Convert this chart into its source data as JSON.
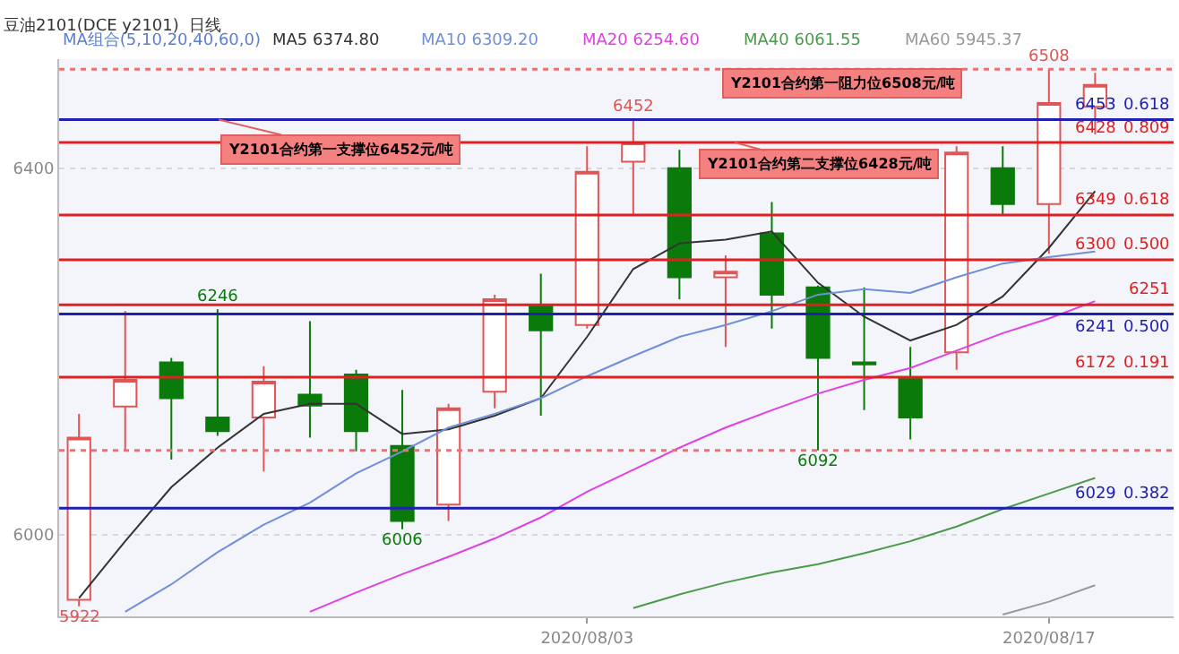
{
  "chart_data": {
    "type": "candlestick",
    "title": "豆油2101(DCE y2101)  日线",
    "categories": [
      null,
      null,
      null,
      null,
      null,
      null,
      null,
      null,
      null,
      null,
      null,
      "2020/08/03",
      null,
      null,
      null,
      null,
      null,
      null,
      null,
      null,
      null,
      "2020/08/17",
      null
    ],
    "ohlc": [
      [
        5929,
        6132,
        5922,
        6106
      ],
      [
        6140,
        6244,
        6091,
        6169
      ],
      [
        6188,
        6193,
        6082,
        6149
      ],
      [
        6128,
        6246,
        6108,
        6113
      ],
      [
        6128,
        6184,
        6069,
        6167
      ],
      [
        6153,
        6233,
        6106,
        6141
      ],
      [
        6175,
        6180,
        6091,
        6113
      ],
      [
        6097,
        6158,
        6006,
        6015
      ],
      [
        6033,
        6143,
        6015,
        6138
      ],
      [
        6156,
        6262,
        6138,
        6257
      ],
      [
        6251,
        6285,
        6130,
        6223
      ],
      [
        6229,
        6424,
        6225,
        6396
      ],
      [
        6407,
        6452,
        6350,
        6428
      ],
      [
        6400,
        6420,
        6257,
        6281
      ],
      [
        6281,
        6305,
        6205,
        6287
      ],
      [
        6329,
        6363,
        6225,
        6262
      ],
      [
        6270,
        6272,
        6092,
        6193
      ],
      [
        6188,
        6270,
        6136,
        6186
      ],
      [
        6171,
        6205,
        6104,
        6128
      ],
      [
        6199,
        6424,
        6180,
        6417
      ],
      [
        6400,
        6424,
        6350,
        6361
      ],
      [
        6361,
        6508,
        6307,
        6471
      ],
      [
        6467,
        6504,
        6437,
        6491
      ]
    ],
    "colors": [
      "#e05555",
      "#e05555",
      "#0a7a0a",
      "#0a7a0a",
      "#e05555",
      "#0a7a0a",
      "#0a7a0a",
      "#0a7a0a",
      "#e05555",
      "#e05555",
      "#0a7a0a",
      "#e05555",
      "#e05555",
      "#0a7a0a",
      "#e05555",
      "#0a7a0a",
      "#0a7a0a",
      "#0a7a0a",
      "#0a7a0a",
      "#e05555",
      "#0a7a0a",
      "#e05555",
      "#e05555"
    ],
    "series": [
      {
        "name": "MA5 6374.80",
        "color": "#333333",
        "type": "line",
        "values": [
          5931,
          5993,
          6052,
          6095,
          6132,
          6143,
          6143,
          6110,
          6115,
          6130,
          6149,
          6216,
          6290,
          6318,
          6322,
          6331,
          6275,
          6238,
          6212,
          6229,
          6260,
          6313,
          6375
        ]
      },
      {
        "name": "MA10 6309.20",
        "color": "#6f8fd8",
        "type": "line",
        "values": [
          null,
          5916,
          5946,
          5981,
          6011,
          6035,
          6067,
          6091,
          6117,
          6132,
          6149,
          6173,
          6195,
          6216,
          6229,
          6244,
          6262,
          6268,
          6264,
          6281,
          6296,
          6303,
          6309
        ]
      },
      {
        "name": "MA20 6254.60",
        "color": "#e040e0",
        "type": "line",
        "values": [
          null,
          null,
          null,
          null,
          null,
          5916,
          5937,
          5957,
          5976,
          5996,
          6019,
          6047,
          6071,
          6095,
          6117,
          6136,
          6154,
          6169,
          6182,
          6201,
          6220,
          6236,
          6255
        ]
      },
      {
        "name": "MA40 6061.55",
        "color": "#4a9a4a",
        "type": "line",
        "values": [
          null,
          null,
          null,
          null,
          null,
          null,
          null,
          null,
          null,
          null,
          null,
          null,
          5920,
          5935,
          5948,
          5959,
          5968,
          5980,
          5993,
          6009,
          6028,
          6045,
          6062
        ]
      },
      {
        "name": "MA60 5945.37",
        "color": "#999999",
        "type": "line",
        "values": [
          null,
          null,
          null,
          null,
          null,
          null,
          null,
          null,
          null,
          null,
          null,
          null,
          null,
          null,
          null,
          null,
          null,
          null,
          null,
          null,
          5913,
          5927,
          5945
        ]
      }
    ],
    "ylim": [
      5911,
      6519
    ],
    "yticks": [
      6000,
      6400
    ],
    "grid": "y",
    "ref_lines": [
      {
        "axis": "y",
        "value": 6508,
        "color": "#f07070",
        "line_style": "dotted"
      },
      {
        "axis": "y",
        "value": 6453,
        "label": "6453\n0.618",
        "color": "#2020b0"
      },
      {
        "axis": "y",
        "value": 6428,
        "label": "6428\n0.809",
        "color": "#e02020"
      },
      {
        "axis": "y",
        "value": 6349,
        "label": "6349\n0.618",
        "color": "#e02020"
      },
      {
        "axis": "y",
        "value": 6300,
        "label": "6300\n0.500",
        "color": "#e02020"
      },
      {
        "axis": "y",
        "value": 6251,
        "label": "6251",
        "color": "#e02020"
      },
      {
        "axis": "y",
        "value": 6241,
        "label": "6241\n0.500",
        "color": "#2020b0"
      },
      {
        "axis": "y",
        "value": 6172,
        "label": "6172\n0.191",
        "color": "#e02020"
      },
      {
        "axis": "y",
        "value": 6092,
        "color": "#f07070",
        "line_style": "dotted"
      },
      {
        "axis": "y",
        "value": 6029,
        "label": "6029\n0.382",
        "color": "#2020b0"
      }
    ],
    "annotations": [
      "MA组合(5,10,20,40,60,0)",
      {
        "text": "Y2101合约第一支撑位6452元/吨",
        "y": 6453
      },
      "Y2101合约第一阻力位6508元/吨",
      {
        "text": "Y2101合约第二支撑位6428元/吨",
        "y": 6428
      },
      {
        "text": "6508",
        "y": 6508
      },
      {
        "text": "6452",
        "y": 6452
      },
      {
        "text": "6246",
        "y": 6246
      },
      {
        "text": "6006",
        "y": 6006
      },
      {
        "text": "6092",
        "y": 6092
      },
      {
        "text": "5922",
        "y": 5922
      }
    ]
  }
}
